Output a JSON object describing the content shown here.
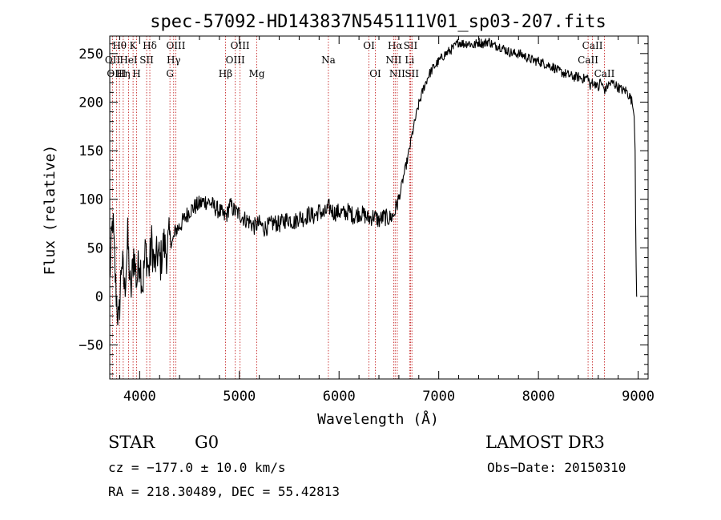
{
  "chart_data": {
    "type": "line",
    "title": "spec-57092-HD143837N545111V01_sp03-207.fits",
    "xlabel": "Wavelength (Å)",
    "ylabel": "Flux (relative)",
    "xlim": [
      3700,
      9100
    ],
    "ylim": [
      -85,
      268
    ],
    "xticks": [
      4000,
      5000,
      6000,
      7000,
      8000,
      9000
    ],
    "yticks": [
      -50,
      0,
      50,
      100,
      150,
      200,
      250
    ],
    "grid": false,
    "series": [
      {
        "name": "spectrum",
        "x": [
          3700,
          3730,
          3760,
          3790,
          3820,
          3850,
          3880,
          3910,
          3940,
          3970,
          4000,
          4030,
          4060,
          4090,
          4120,
          4150,
          4180,
          4210,
          4240,
          4270,
          4300,
          4330,
          4360,
          4400,
          4450,
          4500,
          4550,
          4600,
          4650,
          4700,
          4750,
          4800,
          4850,
          4880,
          4900,
          4950,
          5000,
          5050,
          5100,
          5150,
          5200,
          5250,
          5300,
          5350,
          5400,
          5450,
          5500,
          5550,
          5600,
          5650,
          5700,
          5750,
          5800,
          5850,
          5900,
          5950,
          6000,
          6050,
          6100,
          6150,
          6200,
          6250,
          6300,
          6350,
          6400,
          6450,
          6500,
          6550,
          6580,
          6600,
          6620,
          6650,
          6680,
          6700,
          6730,
          6760,
          6800,
          6850,
          6900,
          6950,
          7000,
          7050,
          7100,
          7150,
          7200,
          7250,
          7300,
          7350,
          7400,
          7450,
          7500,
          7550,
          7600,
          7650,
          7700,
          7750,
          7800,
          7850,
          7900,
          7950,
          8000,
          8050,
          8100,
          8150,
          8200,
          8250,
          8300,
          8350,
          8400,
          8450,
          8500,
          8520,
          8540,
          8560,
          8580,
          8600,
          8620,
          8650,
          8670,
          8700,
          8750,
          8800,
          8850,
          8880,
          8900,
          8920,
          8940,
          8960,
          8970,
          8975,
          8980,
          8985,
          8990,
          9000
        ],
        "y": [
          20,
          80,
          10,
          -30,
          40,
          5,
          60,
          0,
          45,
          15,
          40,
          10,
          50,
          25,
          55,
          30,
          45,
          35,
          55,
          45,
          62,
          55,
          68,
          72,
          80,
          88,
          92,
          95,
          98,
          97,
          92,
          88,
          82,
          85,
          95,
          88,
          85,
          80,
          77,
          72,
          75,
          70,
          73,
          76,
          74,
          78,
          80,
          76,
          82,
          80,
          85,
          82,
          88,
          84,
          92,
          86,
          87,
          85,
          88,
          82,
          86,
          84,
          80,
          83,
          78,
          82,
          80,
          84,
          95,
          100,
          110,
          125,
          138,
          148,
          165,
          180,
          198,
          215,
          228,
          236,
          242,
          248,
          252,
          256,
          262,
          260,
          261,
          258,
          262,
          260,
          263,
          258,
          258,
          255,
          252,
          250,
          250,
          248,
          245,
          243,
          242,
          240,
          238,
          236,
          232,
          230,
          228,
          226,
          226,
          224,
          226,
          214,
          222,
          218,
          220,
          212,
          222,
          215,
          212,
          218,
          220,
          215,
          212,
          212,
          208,
          205,
          200,
          185,
          150,
          80,
          30,
          0,
          0,
          0
        ]
      }
    ],
    "line_markers": [
      {
        "label": "Hθ",
        "x": 3798,
        "row": 0
      },
      {
        "label": "OII",
        "x": 3728,
        "row": 1
      },
      {
        "label": "OIII",
        "x": 3768,
        "row": 2
      },
      {
        "label": "K",
        "x": 3934,
        "row": 0
      },
      {
        "label": "HeI",
        "x": 3889,
        "row": 1
      },
      {
        "label": "Hη",
        "x": 3835,
        "row": 2
      },
      {
        "label": "Hδ",
        "x": 4102,
        "row": 0
      },
      {
        "label": "SII",
        "x": 4070,
        "row": 1
      },
      {
        "label": "H",
        "x": 3969,
        "row": 2
      },
      {
        "label": "OIII",
        "x": 4363,
        "row": 0
      },
      {
        "label": "Hγ",
        "x": 4341,
        "row": 1
      },
      {
        "label": "G",
        "x": 4304,
        "row": 2
      },
      {
        "label": "OIII",
        "x": 5007,
        "row": 0
      },
      {
        "label": "OIII",
        "x": 4959,
        "row": 1
      },
      {
        "label": "Hβ",
        "x": 4861,
        "row": 2
      },
      {
        "label": "Mg",
        "x": 5175,
        "row": 2
      },
      {
        "label": "Na",
        "x": 5893,
        "row": 1
      },
      {
        "label": "OI",
        "x": 6300,
        "row": 0
      },
      {
        "label": "OI",
        "x": 6364,
        "row": 2
      },
      {
        "label": "Hα",
        "x": 6563,
        "row": 0
      },
      {
        "label": "NII",
        "x": 6548,
        "row": 1
      },
      {
        "label": "NII",
        "x": 6584,
        "row": 2
      },
      {
        "label": "SII",
        "x": 6717,
        "row": 0
      },
      {
        "label": "Li",
        "x": 6708,
        "row": 1
      },
      {
        "label": "SII",
        "x": 6731,
        "row": 2
      },
      {
        "label": "CaII",
        "x": 8542,
        "row": 0
      },
      {
        "label": "CaII",
        "x": 8498,
        "row": 1
      },
      {
        "label": "CaII",
        "x": 8662,
        "row": 2
      }
    ]
  },
  "info": {
    "class": "STAR",
    "subclass": "G0",
    "survey": "LAMOST DR3",
    "cz": "cz = −177.0 ± 10.0 km/s",
    "obs_date": "Obs−Date: 20150310",
    "coords": "RA = 218.30489, DEC =  55.42813"
  }
}
